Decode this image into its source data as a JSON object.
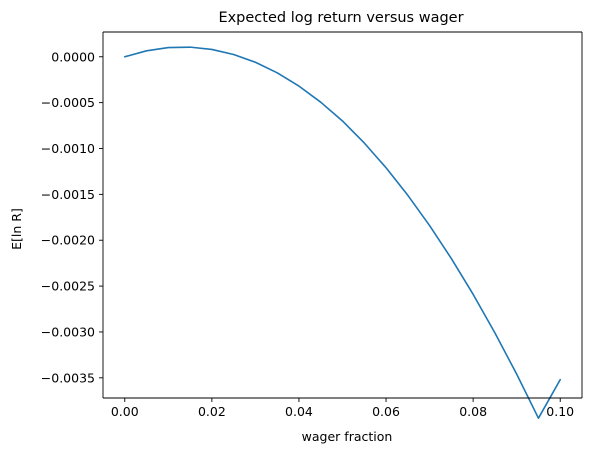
{
  "chart_data": {
    "type": "line",
    "title": "Expected log return versus wager",
    "xlabel": "wager fraction",
    "ylabel": "E[ln R]",
    "xlim": [
      -0.005,
      0.105
    ],
    "ylim": [
      -0.00372,
      0.00027
    ],
    "xticks": [
      0.0,
      0.02,
      0.04,
      0.06,
      0.08,
      0.1
    ],
    "xtick_labels": [
      "0.00",
      "0.02",
      "0.04",
      "0.06",
      "0.08",
      "0.10"
    ],
    "yticks": [
      0.0,
      -0.0005,
      -0.001,
      -0.0015,
      -0.002,
      -0.0025,
      -0.003,
      -0.0035
    ],
    "ytick_labels": [
      "0.0000",
      "−0.0005",
      "−0.0010",
      "−0.0015",
      "−0.0020",
      "−0.0025",
      "−0.0030",
      "−0.0035"
    ],
    "grid": false,
    "series": [
      {
        "color": "#1f77b4",
        "x": [
          0.0,
          0.005,
          0.01,
          0.015,
          0.02,
          0.025,
          0.03,
          0.035,
          0.04,
          0.045,
          0.05,
          0.055,
          0.06,
          0.065,
          0.07,
          0.075,
          0.08,
          0.085,
          0.09,
          0.095,
          0.1
        ],
        "y": [
          0.0,
          6.5e-05,
          0.0001,
          0.000105,
          8e-05,
          2.5e-05,
          -6e-05,
          -0.000175,
          -0.00032,
          -0.000495,
          -0.0007,
          -0.00094,
          -0.00121,
          -0.00151,
          -0.00184,
          -0.0022,
          -0.00259,
          -0.00301,
          -0.00346,
          -0.00394,
          -0.00352
        ]
      }
    ]
  }
}
